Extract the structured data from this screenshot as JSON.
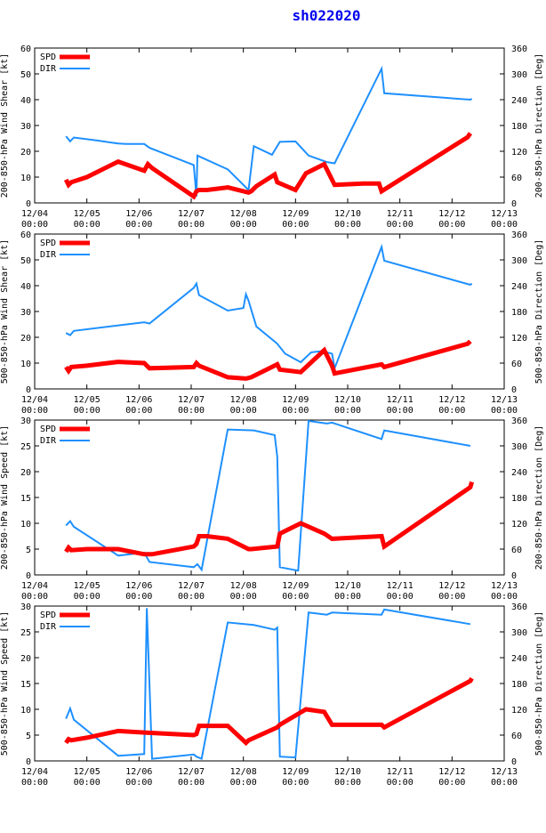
{
  "title": "sh022020",
  "colors": {
    "spd": "#ff0000",
    "dir": "#1e90ff",
    "axis": "#000000",
    "title": "#0000ee"
  },
  "x_ticks": [
    [
      "12/04",
      "00:00"
    ],
    [
      "12/05",
      "00:00"
    ],
    [
      "12/06",
      "00:00"
    ],
    [
      "12/07",
      "00:00"
    ],
    [
      "12/08",
      "00:00"
    ],
    [
      "12/09",
      "00:00"
    ],
    [
      "12/10",
      "00:00"
    ],
    [
      "12/11",
      "00:00"
    ],
    [
      "12/12",
      "00:00"
    ],
    [
      "12/13",
      "00:00"
    ]
  ],
  "chart_data": [
    {
      "type": "line",
      "ylabel_left": "200-850-hPa Wind Shear [kt]",
      "ylabel_right": "200-850-hPa Direction [Deg]",
      "ylim_left": [
        0,
        60
      ],
      "yticks_left": [
        0,
        10,
        20,
        30,
        40,
        50,
        60
      ],
      "ylim_right": [
        0,
        360
      ],
      "yticks_right": [
        0,
        60,
        120,
        180,
        240,
        300,
        360
      ],
      "legend": [
        "SPD",
        "DIR"
      ],
      "series": [
        {
          "name": "SPD",
          "x": [
            0.6,
            0.65,
            0.7,
            1.0,
            1.6,
            2.1,
            2.17,
            2.25,
            3.05,
            3.1,
            3.15,
            3.3,
            3.7,
            4.1,
            4.15,
            4.25,
            4.6,
            4.65,
            5.0,
            5.2,
            5.55,
            5.75,
            6.3,
            6.6,
            6.65,
            8.3,
            8.35
          ],
          "y": [
            9,
            7,
            8,
            10,
            16,
            12.5,
            15,
            13.5,
            2.5,
            4.5,
            5,
            5,
            6,
            4,
            4.5,
            6.5,
            11,
            8,
            5,
            11.5,
            15,
            7,
            7.5,
            7.5,
            4.5,
            25.5,
            27
          ]
        },
        {
          "name": "DIR",
          "x": [
            0.6,
            0.68,
            0.75,
            1.2,
            1.6,
            1.75,
            2.1,
            2.2,
            3.05,
            3.1,
            3.12,
            3.7,
            4.1,
            4.2,
            4.55,
            4.7,
            5.0,
            5.25,
            5.6,
            5.75,
            6.65,
            6.7,
            8.35,
            8.38
          ],
          "y": [
            155,
            143,
            152,
            145,
            138,
            137,
            137,
            128,
            88,
            15,
            110,
            78,
            30,
            132,
            112,
            142,
            143,
            110,
            95,
            92,
            312,
            255,
            240,
            242
          ]
        }
      ]
    },
    {
      "type": "line",
      "ylabel_left": "500-850-hPa Wind Shear [kt]",
      "ylabel_right": "500-850-hPa Direction [Deg]",
      "ylim_left": [
        0,
        60
      ],
      "yticks_left": [
        0,
        10,
        20,
        30,
        40,
        50,
        60
      ],
      "ylim_right": [
        0,
        360
      ],
      "yticks_right": [
        0,
        60,
        120,
        180,
        240,
        300,
        360
      ],
      "legend": [
        "SPD",
        "DIR"
      ],
      "series": [
        {
          "name": "SPD",
          "x": [
            0.6,
            0.65,
            0.7,
            1.0,
            1.6,
            2.1,
            2.2,
            3.05,
            3.1,
            3.15,
            3.7,
            4.05,
            4.15,
            4.65,
            4.7,
            5.1,
            5.55,
            5.7,
            5.75,
            6.65,
            6.7,
            8.3,
            8.35
          ],
          "y": [
            8.5,
            7,
            8.5,
            9,
            10.5,
            10,
            8,
            8.5,
            10,
            9,
            4.5,
            4,
            4.5,
            9.5,
            7.5,
            6.5,
            15,
            9,
            6,
            9.5,
            8.5,
            17.5,
            18.5
          ]
        },
        {
          "name": "DIR",
          "x": [
            0.6,
            0.68,
            0.75,
            2.1,
            2.2,
            3.05,
            3.1,
            3.15,
            3.7,
            4.0,
            4.05,
            4.1,
            4.25,
            4.6,
            4.65,
            4.8,
            5.1,
            5.3,
            5.5,
            5.7,
            5.75,
            6.65,
            6.7,
            8.35,
            8.38
          ],
          "y": [
            130,
            125,
            135,
            155,
            152,
            235,
            245,
            218,
            182,
            188,
            220,
            205,
            145,
            110,
            105,
            82,
            62,
            85,
            88,
            82,
            48,
            330,
            298,
            242,
            245
          ]
        }
      ]
    },
    {
      "type": "line",
      "ylabel_left": "200-850-hPa Wind Speed [kt]",
      "ylabel_right": "200-850-hPa Direction [Deg]",
      "ylim_left": [
        0,
        30
      ],
      "yticks_left": [
        0,
        5,
        10,
        15,
        20,
        25,
        30
      ],
      "ylim_right": [
        0,
        360
      ],
      "yticks_right": [
        0,
        60,
        120,
        180,
        240,
        300,
        360
      ],
      "legend": [
        "SPD",
        "DIR"
      ],
      "series": [
        {
          "name": "SPD",
          "x": [
            0.6,
            0.65,
            0.7,
            1.0,
            1.6,
            2.1,
            2.25,
            3.05,
            3.1,
            3.15,
            3.3,
            3.7,
            4.1,
            4.15,
            4.65,
            4.7,
            5.1,
            5.55,
            5.7,
            6.65,
            6.7,
            8.35,
            8.38
          ],
          "y": [
            4.5,
            5.3,
            4.8,
            5,
            5,
            4,
            4,
            5.5,
            6,
            7.5,
            7.5,
            7,
            5,
            5,
            5.5,
            8,
            10,
            8,
            7,
            7.5,
            5.5,
            17,
            18
          ]
        },
        {
          "name": "DIR",
          "x": [
            0.6,
            0.68,
            0.75,
            1.6,
            2.1,
            2.2,
            3.05,
            3.12,
            3.2,
            3.7,
            4.2,
            4.6,
            4.65,
            4.7,
            5.05,
            5.25,
            5.6,
            5.7,
            6.65,
            6.7,
            8.35
          ],
          "y": [
            115,
            125,
            112,
            45,
            52,
            30,
            18,
            25,
            12,
            338,
            336,
            325,
            275,
            18,
            10,
            358,
            352,
            354,
            316,
            336,
            300
          ]
        }
      ]
    },
    {
      "type": "line",
      "ylabel_left": "500-850-hPa Wind Speed [kt]",
      "ylabel_right": "500-850-hPa Direction [Deg]",
      "ylim_left": [
        0,
        30
      ],
      "yticks_left": [
        0,
        5,
        10,
        15,
        20,
        25,
        30
      ],
      "ylim_right": [
        0,
        360
      ],
      "yticks_right": [
        0,
        60,
        120,
        180,
        240,
        300,
        360
      ],
      "legend": [
        "SPD",
        "DIR"
      ],
      "series": [
        {
          "name": "SPD",
          "x": [
            0.6,
            0.65,
            0.7,
            1.0,
            1.6,
            2.1,
            3.05,
            3.1,
            3.15,
            3.7,
            4.05,
            4.1,
            4.65,
            4.7,
            5.2,
            5.55,
            5.7,
            6.65,
            6.7,
            8.35,
            8.38
          ],
          "y": [
            3.5,
            4.2,
            4,
            4.5,
            5.8,
            5.5,
            5,
            5.2,
            6.8,
            6.8,
            3.5,
            4,
            6.5,
            7,
            10,
            9.5,
            7,
            7,
            6.5,
            15.5,
            16
          ]
        },
        {
          "name": "DIR",
          "x": [
            0.6,
            0.68,
            0.75,
            1.6,
            2.1,
            2.15,
            2.25,
            3.05,
            3.1,
            3.2,
            3.7,
            4.2,
            4.6,
            4.65,
            4.7,
            5.0,
            5.25,
            5.6,
            5.7,
            6.65,
            6.7,
            8.35
          ],
          "y": [
            98,
            122,
            96,
            12,
            16,
            355,
            5,
            15,
            10,
            5,
            322,
            316,
            305,
            310,
            10,
            8,
            345,
            340,
            345,
            340,
            352,
            318
          ]
        }
      ]
    }
  ]
}
